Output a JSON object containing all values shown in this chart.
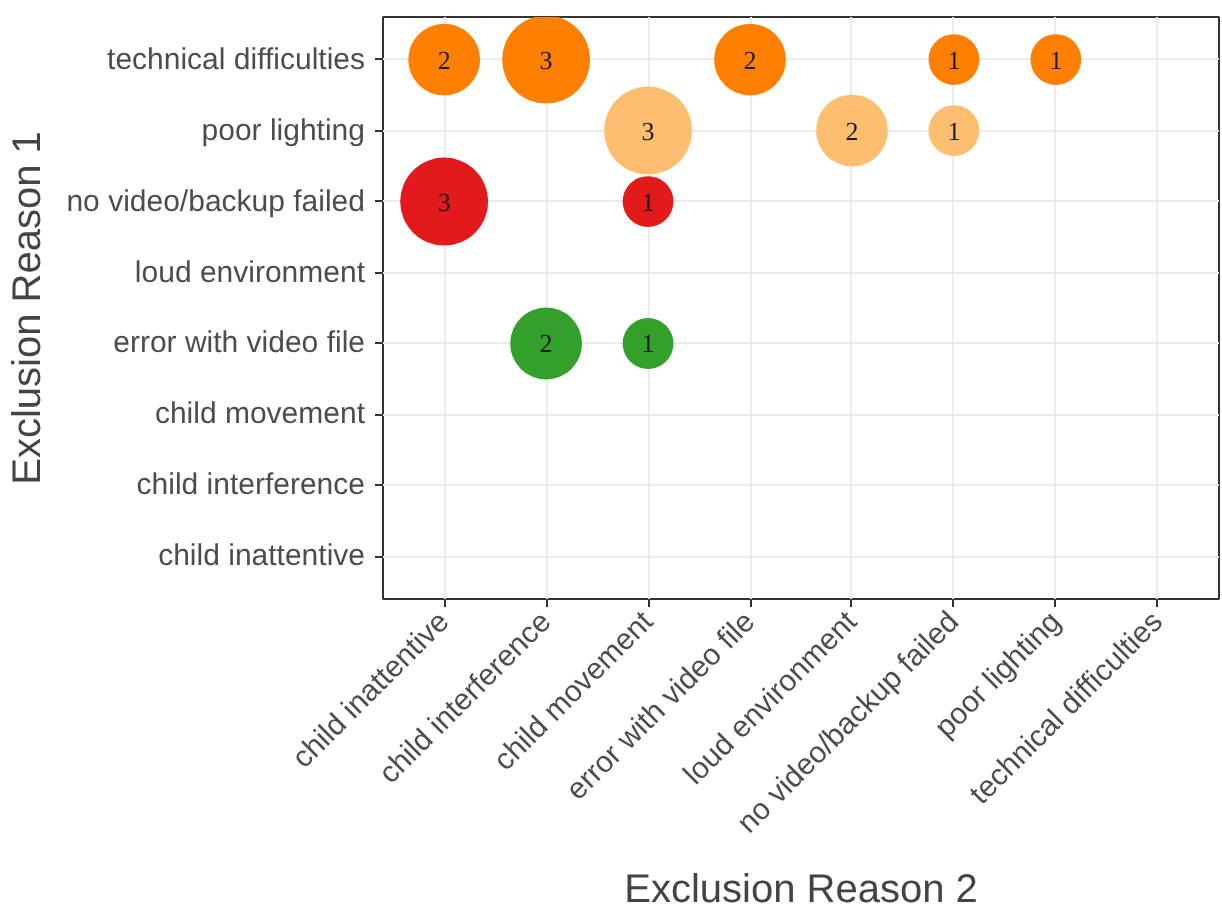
{
  "chart_data": {
    "type": "heatmap",
    "xlabel": "Exclusion Reason 2",
    "ylabel": "Exclusion Reason 1",
    "categories": [
      "child inattentive",
      "child interference",
      "child movement",
      "error with video file",
      "loud environment",
      "no video/backup failed",
      "poor lighting",
      "technical difficulties"
    ],
    "y_categories": [
      "technical difficulties",
      "poor lighting",
      "no video/backup failed",
      "loud environment",
      "error with video file",
      "child movement",
      "child interference",
      "child inattentive"
    ],
    "cells": [
      [
        2,
        3,
        null,
        2,
        null,
        1,
        1,
        null
      ],
      [
        null,
        null,
        3,
        null,
        2,
        1,
        null,
        null
      ],
      [
        3,
        null,
        1,
        null,
        null,
        null,
        null,
        null
      ],
      [
        null,
        null,
        null,
        null,
        null,
        null,
        null,
        null
      ],
      [
        null,
        2,
        1,
        null,
        null,
        null,
        null,
        null
      ],
      [
        null,
        null,
        null,
        null,
        null,
        null,
        null,
        null
      ],
      [
        null,
        null,
        null,
        null,
        null,
        null,
        null,
        null
      ],
      [
        null,
        null,
        null,
        null,
        null,
        null,
        null,
        null
      ]
    ],
    "colors": [
      "#ff7f00",
      "#fdbf6f",
      "#e31a1c",
      "#ffffff",
      "#33a02c",
      "#ffffff",
      "#ffffff",
      "#ffffff"
    ],
    "data_labels": true,
    "grid": true
  }
}
